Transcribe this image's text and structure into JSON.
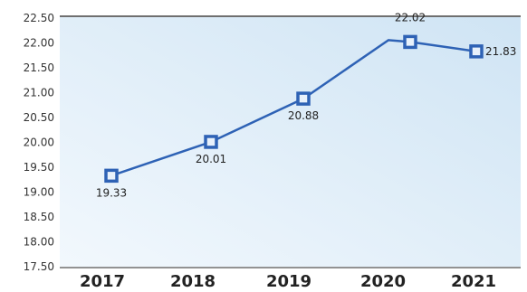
{
  "chart_data": {
    "type": "line",
    "title": "",
    "xlabel": "",
    "ylabel": "",
    "categories": [
      "2017",
      "2018",
      "2019",
      "2020",
      "2021"
    ],
    "series": [
      {
        "values": [
          19.33,
          20.01,
          20.88,
          22.02,
          21.83
        ]
      }
    ],
    "value_labels": [
      "19.33",
      "20.01",
      "20.88",
      "22.02",
      "21.83"
    ],
    "ylim": [
      17.5,
      22.5
    ],
    "y_ticks": [
      17.5,
      18,
      18.5,
      19,
      19.5,
      20,
      20.5,
      21,
      21.5,
      22,
      22.5
    ],
    "y_tick_labels": [
      "17.50",
      "18.00",
      "18.50",
      "19.00",
      "19.50",
      "20.00",
      "20.50",
      "21.00",
      "21.50",
      "22.00",
      "22.50"
    ],
    "grid": false,
    "legend": "none",
    "colors": {
      "line": "#2e62b5",
      "marker_fill": "#e8f1fb",
      "marker_stroke": "#2e62b5",
      "plot_bg_light": "#f2f8fd",
      "plot_bg_dark": "#cfe4f4",
      "frame": "#6f6f6f"
    }
  }
}
